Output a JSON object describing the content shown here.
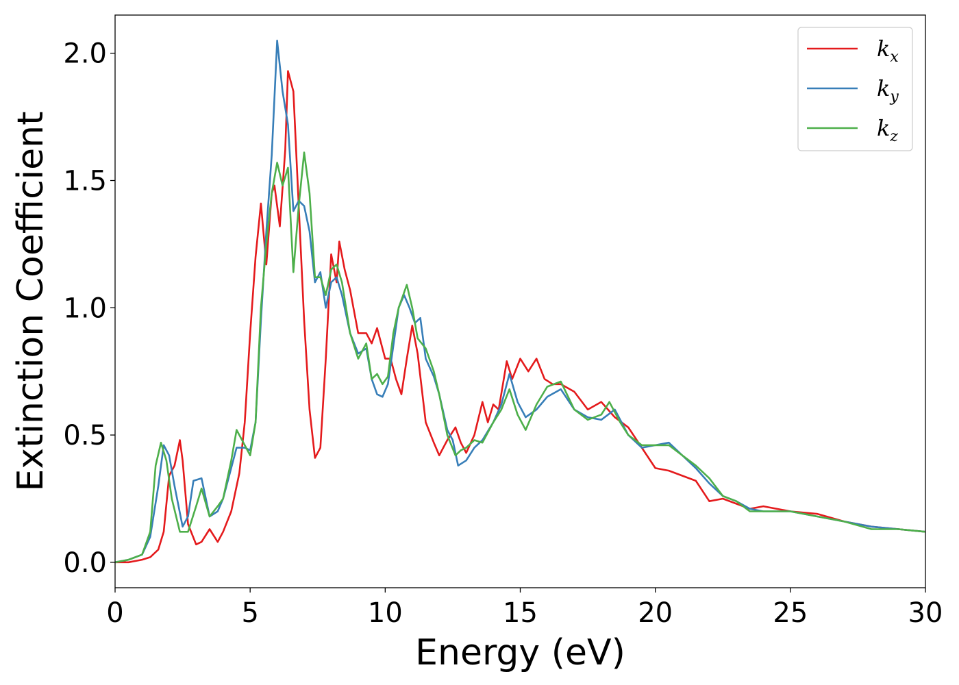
{
  "chart_data": {
    "type": "line",
    "xlabel": "Energy (eV)",
    "ylabel": "Extinction Coefficient",
    "xlim": [
      0,
      30
    ],
    "ylim": [
      -0.1,
      2.15
    ],
    "xticks": [
      0,
      5,
      10,
      15,
      20,
      25,
      30
    ],
    "xtick_labels": [
      "0",
      "5",
      "10",
      "15",
      "20",
      "25",
      "30"
    ],
    "yticks": [
      0.0,
      0.5,
      1.0,
      1.5,
      2.0
    ],
    "ytick_labels": [
      "0.0",
      "0.5",
      "1.0",
      "1.5",
      "2.0"
    ],
    "grid": false,
    "legend_position": "top-right",
    "series": [
      {
        "name": "k",
        "subscript": "x",
        "color": "#e41a1c",
        "x": [
          0,
          0.5,
          1.0,
          1.3,
          1.6,
          1.8,
          2.0,
          2.2,
          2.4,
          2.5,
          2.7,
          3.0,
          3.2,
          3.5,
          3.8,
          4.0,
          4.3,
          4.6,
          4.8,
          5.0,
          5.2,
          5.4,
          5.6,
          5.8,
          5.9,
          6.1,
          6.3,
          6.4,
          6.6,
          6.8,
          7.0,
          7.2,
          7.4,
          7.6,
          7.8,
          8.0,
          8.2,
          8.3,
          8.5,
          8.7,
          9.0,
          9.3,
          9.5,
          9.7,
          10.0,
          10.2,
          10.4,
          10.6,
          10.8,
          11.0,
          11.2,
          11.5,
          11.8,
          12.0,
          12.3,
          12.6,
          12.8,
          13.0,
          13.3,
          13.6,
          13.8,
          14.0,
          14.2,
          14.5,
          14.7,
          15.0,
          15.3,
          15.6,
          15.9,
          16.2,
          16.5,
          17.0,
          17.5,
          18.0,
          18.5,
          19.0,
          19.5,
          20.0,
          20.5,
          21.0,
          21.5,
          22.0,
          22.5,
          23.0,
          23.5,
          24.0,
          25.0,
          26.0,
          27.0,
          28.0,
          29.0,
          30.0
        ],
        "values": [
          0.0,
          0.0,
          0.01,
          0.02,
          0.05,
          0.12,
          0.34,
          0.38,
          0.48,
          0.4,
          0.15,
          0.07,
          0.08,
          0.13,
          0.08,
          0.12,
          0.2,
          0.35,
          0.55,
          0.9,
          1.2,
          1.41,
          1.17,
          1.45,
          1.48,
          1.32,
          1.62,
          1.93,
          1.85,
          1.4,
          0.95,
          0.6,
          0.41,
          0.45,
          0.8,
          1.21,
          1.1,
          1.26,
          1.15,
          1.07,
          0.9,
          0.9,
          0.86,
          0.92,
          0.8,
          0.8,
          0.72,
          0.66,
          0.8,
          0.93,
          0.82,
          0.55,
          0.47,
          0.42,
          0.48,
          0.53,
          0.47,
          0.43,
          0.5,
          0.63,
          0.55,
          0.62,
          0.6,
          0.79,
          0.72,
          0.8,
          0.75,
          0.8,
          0.72,
          0.7,
          0.7,
          0.67,
          0.6,
          0.63,
          0.57,
          0.53,
          0.45,
          0.37,
          0.36,
          0.34,
          0.32,
          0.24,
          0.25,
          0.23,
          0.21,
          0.22,
          0.2,
          0.19,
          0.16,
          0.14,
          0.13,
          0.12
        ]
      },
      {
        "name": "k",
        "subscript": "y",
        "color": "#377eb8",
        "x": [
          0,
          0.5,
          1.0,
          1.3,
          1.6,
          1.8,
          2.0,
          2.2,
          2.5,
          2.7,
          2.9,
          3.2,
          3.5,
          3.8,
          4.0,
          4.2,
          4.5,
          4.8,
          5.0,
          5.2,
          5.4,
          5.6,
          5.8,
          6.0,
          6.2,
          6.4,
          6.6,
          6.8,
          7.0,
          7.2,
          7.4,
          7.6,
          7.8,
          8.0,
          8.2,
          8.4,
          8.7,
          9.0,
          9.3,
          9.5,
          9.7,
          9.9,
          10.1,
          10.3,
          10.5,
          10.7,
          10.9,
          11.1,
          11.3,
          11.5,
          11.8,
          12.0,
          12.3,
          12.5,
          12.7,
          13.0,
          13.3,
          13.6,
          14.0,
          14.3,
          14.6,
          14.9,
          15.2,
          15.6,
          16.0,
          16.5,
          17.0,
          17.5,
          18.0,
          18.5,
          19.0,
          19.5,
          20.0,
          20.5,
          21.0,
          21.5,
          22.0,
          22.5,
          23.0,
          23.5,
          24.0,
          25.0,
          26.0,
          27.0,
          28.0,
          29.0,
          30.0
        ],
        "values": [
          0.0,
          0.01,
          0.03,
          0.1,
          0.3,
          0.46,
          0.42,
          0.3,
          0.14,
          0.18,
          0.32,
          0.33,
          0.18,
          0.2,
          0.25,
          0.33,
          0.45,
          0.45,
          0.44,
          0.55,
          0.95,
          1.3,
          1.6,
          2.05,
          1.85,
          1.72,
          1.38,
          1.42,
          1.4,
          1.3,
          1.1,
          1.14,
          1.0,
          1.1,
          1.12,
          1.05,
          0.9,
          0.82,
          0.84,
          0.72,
          0.66,
          0.65,
          0.7,
          0.85,
          1.0,
          1.05,
          1.0,
          0.94,
          0.96,
          0.8,
          0.73,
          0.66,
          0.52,
          0.48,
          0.38,
          0.4,
          0.45,
          0.48,
          0.55,
          0.62,
          0.74,
          0.63,
          0.57,
          0.6,
          0.65,
          0.68,
          0.6,
          0.57,
          0.56,
          0.6,
          0.5,
          0.45,
          0.46,
          0.47,
          0.42,
          0.37,
          0.31,
          0.26,
          0.24,
          0.21,
          0.2,
          0.2,
          0.18,
          0.16,
          0.14,
          0.13,
          0.12
        ]
      },
      {
        "name": "k",
        "subscript": "z",
        "color": "#4daf4a",
        "x": [
          0,
          0.5,
          1.0,
          1.3,
          1.5,
          1.7,
          1.9,
          2.1,
          2.4,
          2.7,
          3.0,
          3.2,
          3.5,
          3.8,
          4.0,
          4.3,
          4.5,
          4.8,
          5.0,
          5.2,
          5.4,
          5.6,
          5.8,
          6.0,
          6.2,
          6.4,
          6.6,
          6.8,
          7.0,
          7.2,
          7.4,
          7.6,
          7.8,
          8.0,
          8.2,
          8.4,
          8.7,
          9.0,
          9.3,
          9.5,
          9.7,
          9.9,
          10.1,
          10.3,
          10.5,
          10.8,
          11.0,
          11.2,
          11.5,
          11.8,
          12.0,
          12.3,
          12.6,
          12.8,
          13.0,
          13.3,
          13.6,
          14.0,
          14.3,
          14.6,
          14.9,
          15.2,
          15.6,
          16.0,
          16.5,
          17.0,
          17.5,
          18.0,
          18.3,
          18.7,
          19.0,
          19.5,
          20.0,
          20.5,
          21.0,
          21.5,
          22.0,
          22.5,
          23.0,
          23.5,
          24.0,
          25.0,
          26.0,
          27.0,
          28.0,
          29.0,
          30.0
        ],
        "values": [
          0.0,
          0.01,
          0.03,
          0.12,
          0.38,
          0.47,
          0.4,
          0.25,
          0.12,
          0.12,
          0.22,
          0.29,
          0.18,
          0.22,
          0.25,
          0.4,
          0.52,
          0.46,
          0.42,
          0.55,
          1.0,
          1.25,
          1.45,
          1.57,
          1.48,
          1.55,
          1.14,
          1.4,
          1.61,
          1.45,
          1.12,
          1.12,
          1.05,
          1.15,
          1.17,
          1.1,
          0.9,
          0.8,
          0.86,
          0.72,
          0.74,
          0.7,
          0.73,
          0.9,
          1.0,
          1.09,
          1.0,
          0.88,
          0.84,
          0.75,
          0.66,
          0.5,
          0.42,
          0.44,
          0.45,
          0.48,
          0.47,
          0.55,
          0.6,
          0.68,
          0.58,
          0.52,
          0.62,
          0.69,
          0.71,
          0.6,
          0.56,
          0.58,
          0.63,
          0.55,
          0.5,
          0.46,
          0.46,
          0.46,
          0.42,
          0.38,
          0.33,
          0.26,
          0.24,
          0.2,
          0.2,
          0.2,
          0.18,
          0.16,
          0.13,
          0.13,
          0.12
        ]
      }
    ]
  }
}
